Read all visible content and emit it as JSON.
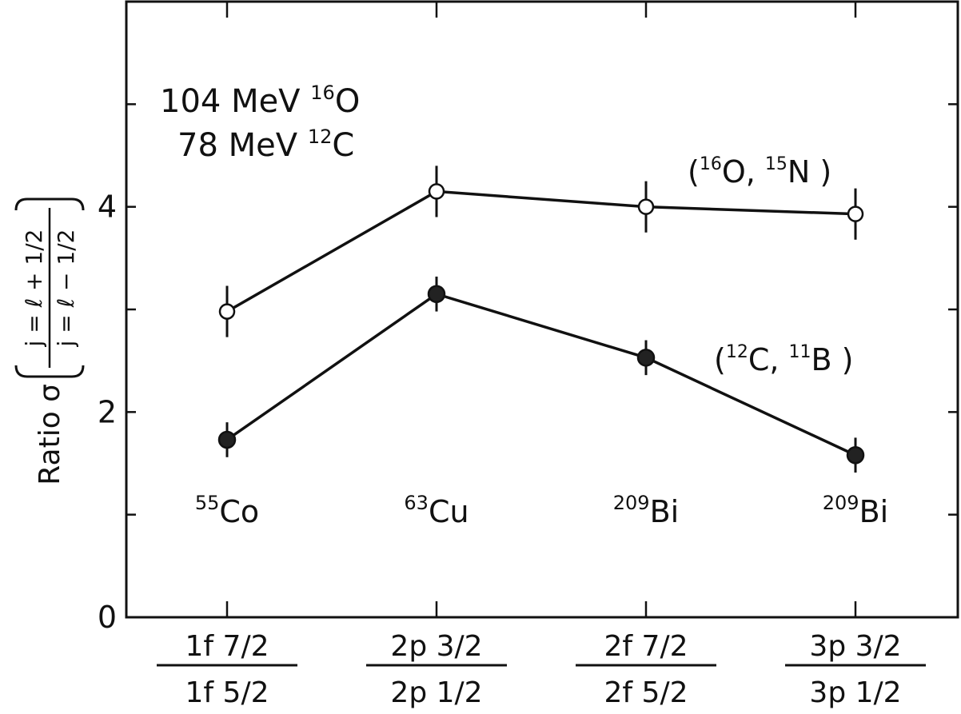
{
  "chart_data": {
    "type": "line",
    "categories": [
      {
        "num": "1f 7/2",
        "den": "1f 5/2"
      },
      {
        "num": "2p 3/2",
        "den": "2p 1/2"
      },
      {
        "num": "2f 7/2",
        "den": "2f 5/2"
      },
      {
        "num": "3p 3/2",
        "den": "3p 1/2"
      }
    ],
    "ylabel": {
      "prefix": "Ratio σ",
      "numerator": "j = ℓ + 1/2",
      "denominator": "j = ℓ − 1/2"
    },
    "ylim": [
      0,
      6
    ],
    "yticks": [
      0,
      2,
      4
    ],
    "beam_lines": [
      {
        "energy": "104 MeV",
        "mass": "16",
        "element": "O"
      },
      {
        "energy": "78 MeV",
        "mass": "12",
        "element": "C"
      }
    ],
    "series": [
      {
        "label_parts": [
          {
            "text": "("
          },
          {
            "sup": "16"
          },
          {
            "text": "O,  "
          },
          {
            "sup": "15"
          },
          {
            "text": "N )"
          }
        ],
        "marker": "open-circle",
        "values": [
          2.98,
          4.15,
          4.0,
          3.93
        ],
        "errors": [
          0.25,
          0.25,
          0.25,
          0.25
        ]
      },
      {
        "label_parts": [
          {
            "text": "("
          },
          {
            "sup": "12"
          },
          {
            "text": "C,  "
          },
          {
            "sup": "11"
          },
          {
            "text": "B )"
          }
        ],
        "marker": "filled-circle",
        "values": [
          1.73,
          3.15,
          2.53,
          1.58
        ],
        "errors": [
          0.17,
          0.17,
          0.17,
          0.17
        ]
      }
    ],
    "target_labels": [
      {
        "mass": "55",
        "element": "Co"
      },
      {
        "mass": "63",
        "element": "Cu"
      },
      {
        "mass": "209",
        "element": "Bi"
      },
      {
        "mass": "209",
        "element": "Bi"
      }
    ],
    "grid": false
  }
}
